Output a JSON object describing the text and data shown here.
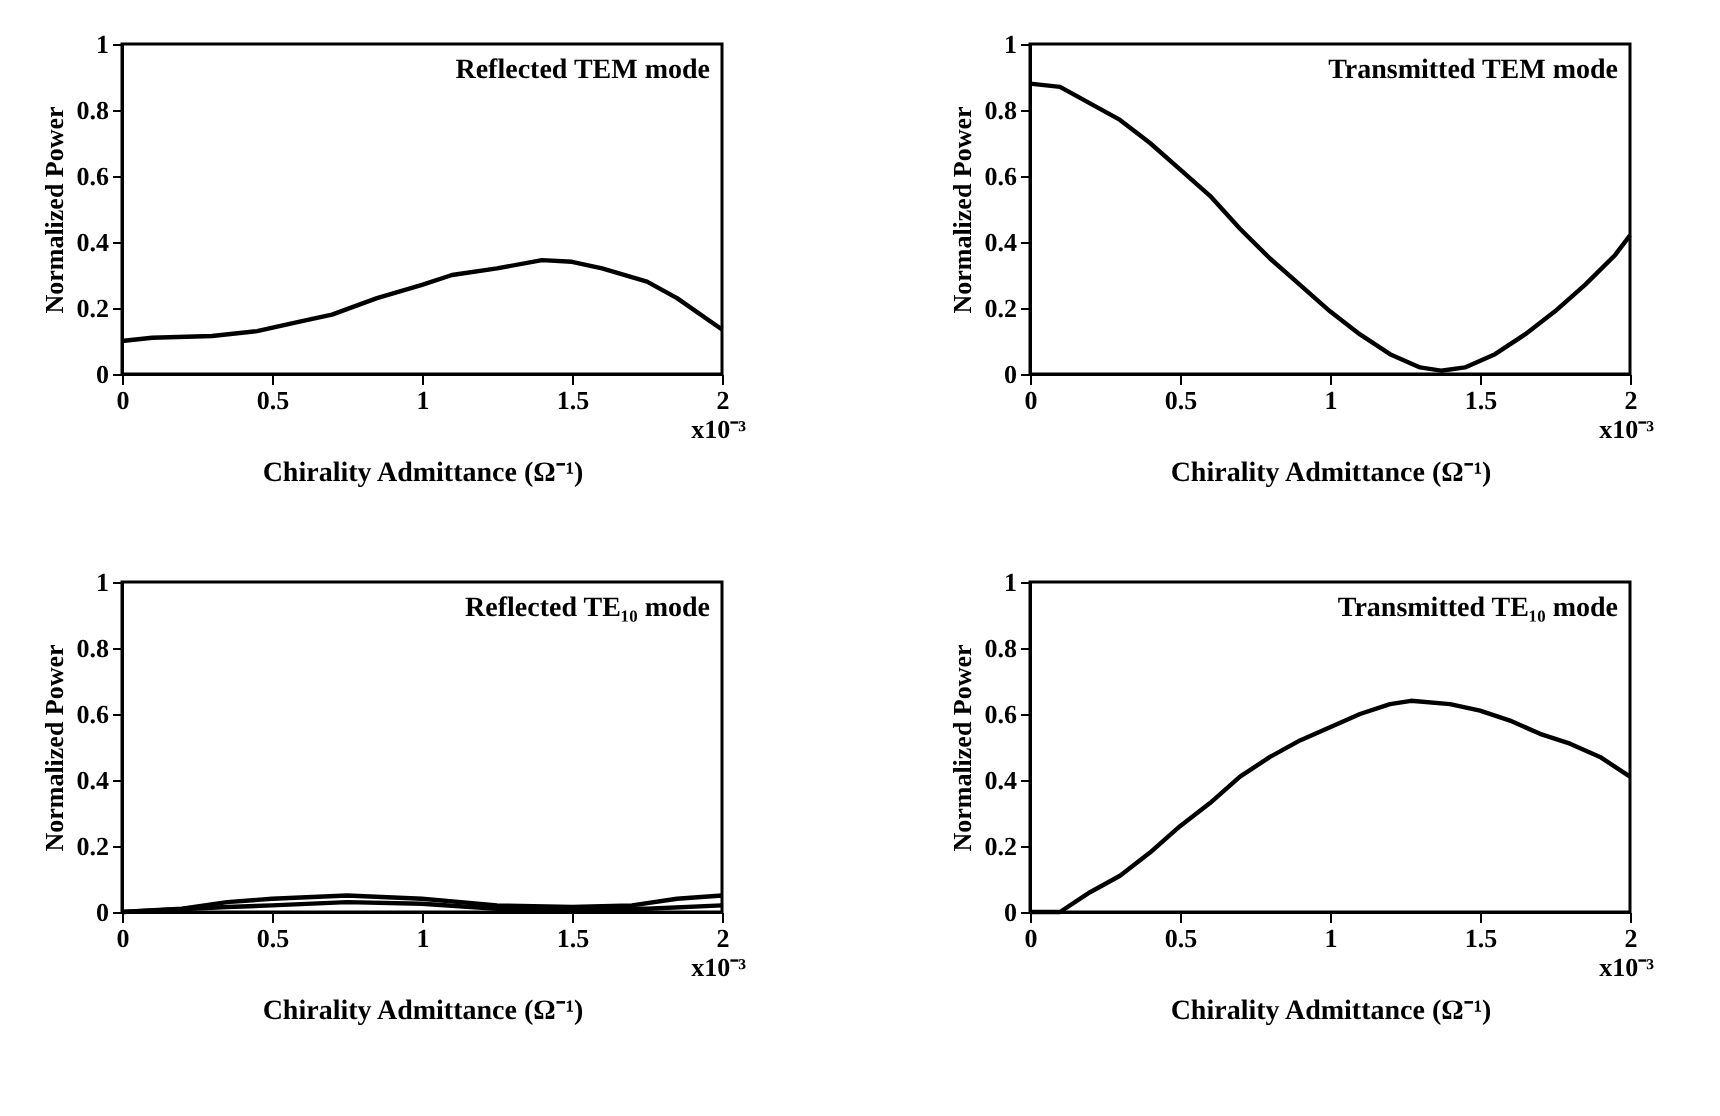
{
  "chart_data": [
    {
      "type": "line",
      "title": "Reflected TEM mode",
      "xlabel": "Chirality Admittance (Ω⁻¹)",
      "ylabel": "Normalized Power",
      "annotations": [
        "x10⁻³"
      ],
      "xlim": [
        0,
        2
      ],
      "ylim": [
        0,
        1
      ],
      "xticks": [
        0,
        0.5,
        1,
        1.5,
        2
      ],
      "yticks": [
        0,
        0.2,
        0.4,
        0.6,
        0.8,
        1
      ],
      "grid": false,
      "legend": false,
      "x": [
        0,
        0.1,
        0.3,
        0.45,
        0.6,
        0.7,
        0.85,
        1.0,
        1.1,
        1.25,
        1.4,
        1.5,
        1.6,
        1.75,
        1.85,
        2.0
      ],
      "series": [
        {
          "color": "#000000",
          "values": [
            0.1,
            0.11,
            0.115,
            0.13,
            0.16,
            0.18,
            0.23,
            0.27,
            0.3,
            0.32,
            0.345,
            0.34,
            0.32,
            0.28,
            0.23,
            0.135
          ]
        }
      ]
    },
    {
      "type": "line",
      "title": "Transmitted TEM mode",
      "xlabel": "Chirality Admittance (Ω⁻¹)",
      "ylabel": "Normalized Power",
      "annotations": [
        "x10⁻³"
      ],
      "xlim": [
        0,
        2
      ],
      "ylim": [
        0,
        1
      ],
      "xticks": [
        0,
        0.5,
        1,
        1.5,
        2
      ],
      "yticks": [
        0,
        0.2,
        0.4,
        0.6,
        0.8,
        1
      ],
      "grid": false,
      "legend": false,
      "x": [
        0,
        0.1,
        0.2,
        0.3,
        0.4,
        0.5,
        0.6,
        0.7,
        0.8,
        0.9,
        1.0,
        1.1,
        1.2,
        1.3,
        1.37,
        1.45,
        1.55,
        1.65,
        1.75,
        1.85,
        1.95,
        2.0
      ],
      "series": [
        {
          "color": "#000000",
          "values": [
            0.88,
            0.87,
            0.82,
            0.77,
            0.7,
            0.62,
            0.54,
            0.44,
            0.35,
            0.27,
            0.19,
            0.12,
            0.06,
            0.02,
            0.01,
            0.02,
            0.06,
            0.12,
            0.19,
            0.27,
            0.36,
            0.42
          ]
        }
      ]
    },
    {
      "type": "line",
      "title": "Reflected TE₁₀ mode",
      "xlabel": "Chirality Admittance (Ω⁻¹)",
      "ylabel": "Normalized Power",
      "annotations": [
        "x10⁻³"
      ],
      "xlim": [
        0,
        2
      ],
      "ylim": [
        0,
        1
      ],
      "xticks": [
        0,
        0.5,
        1,
        1.5,
        2
      ],
      "yticks": [
        0,
        0.2,
        0.4,
        0.6,
        0.8,
        1
      ],
      "grid": false,
      "legend": false,
      "series": [
        {
          "color": "#000000",
          "x": [
            0,
            0.2,
            0.35,
            0.5,
            0.75,
            1.0,
            1.25,
            1.5,
            1.7,
            1.85,
            2.0
          ],
          "values": [
            0,
            0.01,
            0.03,
            0.04,
            0.05,
            0.04,
            0.02,
            0.015,
            0.02,
            0.04,
            0.05
          ]
        },
        {
          "color": "#000000",
          "x": [
            0,
            0.35,
            0.5,
            0.75,
            1.0,
            1.25,
            1.5,
            1.75,
            2.0
          ],
          "values": [
            0,
            0.015,
            0.02,
            0.03,
            0.025,
            0.01,
            0.01,
            0.01,
            0.02
          ]
        }
      ]
    },
    {
      "type": "line",
      "title": "Transmitted TE₁₀ mode",
      "xlabel": "Chirality Admittance (Ω⁻¹)",
      "ylabel": "Normalized Power",
      "annotations": [
        "x10⁻³"
      ],
      "xlim": [
        0,
        2
      ],
      "ylim": [
        0,
        1
      ],
      "xticks": [
        0,
        0.5,
        1,
        1.5,
        2
      ],
      "yticks": [
        0,
        0.2,
        0.4,
        0.6,
        0.8,
        1
      ],
      "grid": false,
      "legend": false,
      "x": [
        0,
        0.1,
        0.2,
        0.3,
        0.4,
        0.5,
        0.6,
        0.7,
        0.8,
        0.9,
        1.0,
        1.1,
        1.2,
        1.27,
        1.4,
        1.5,
        1.6,
        1.7,
        1.8,
        1.9,
        2.0
      ],
      "series": [
        {
          "color": "#000000",
          "values": [
            0,
            0,
            0.06,
            0.11,
            0.18,
            0.26,
            0.33,
            0.41,
            0.47,
            0.52,
            0.56,
            0.6,
            0.63,
            0.64,
            0.63,
            0.61,
            0.58,
            0.54,
            0.51,
            0.47,
            0.41
          ]
        }
      ]
    }
  ]
}
